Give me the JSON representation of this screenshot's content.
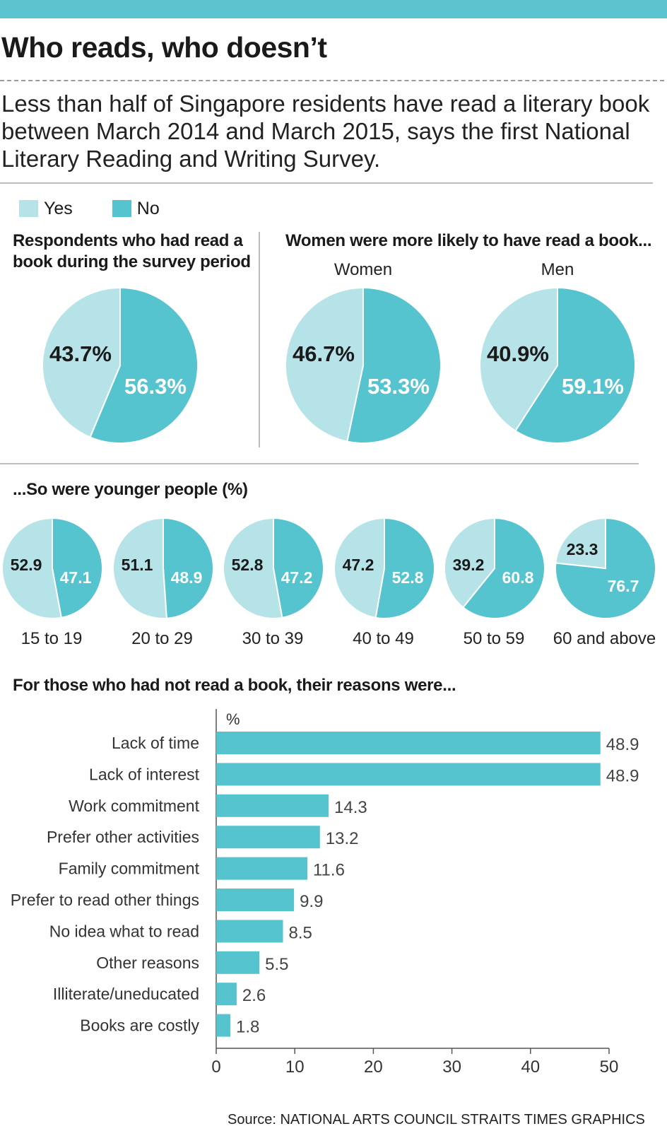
{
  "title": "Who reads, who doesn’t",
  "intro": "Less than half of Singapore residents have read a literary book between March 2014 and March 2015, says the first National Literary Reading and Writing Survey.",
  "legend": [
    {
      "label": "Yes",
      "color": "#b6e3e8"
    },
    {
      "label": "No",
      "color": "#56c4cf"
    }
  ],
  "colors": {
    "yes": "#b6e3e8",
    "no": "#56c4cf",
    "accent": "#5cc4cf"
  },
  "section_overall": {
    "title_lines": [
      "Respondents who had read a",
      "book during the survey period"
    ]
  },
  "section_gender": {
    "title": "Women were more likely to have read a book..."
  },
  "section_age": {
    "title": "...So were younger people (%)"
  },
  "section_reasons": {
    "title": "For those who had not read a book, their reasons were..."
  },
  "source": "Source: NATIONAL ARTS COUNCIL   STRAITS TIMES GRAPHICS",
  "chart_data": [
    {
      "type": "pie",
      "id": "overall",
      "title": "Respondents who had read a book during the survey period",
      "label": "",
      "slices": [
        {
          "name": "Yes",
          "value": 43.7,
          "label": "43.7%"
        },
        {
          "name": "No",
          "value": 56.3,
          "label": "56.3%"
        }
      ]
    },
    {
      "type": "pie",
      "id": "women",
      "title": "Women were more likely to have read a book...",
      "label": "Women",
      "slices": [
        {
          "name": "Yes",
          "value": 46.7,
          "label": "46.7%"
        },
        {
          "name": "No",
          "value": 53.3,
          "label": "53.3%"
        }
      ]
    },
    {
      "type": "pie",
      "id": "men",
      "label": "Men",
      "slices": [
        {
          "name": "Yes",
          "value": 40.9,
          "label": "40.9%"
        },
        {
          "name": "No",
          "value": 59.1,
          "label": "59.1%"
        }
      ]
    },
    {
      "type": "pie",
      "id": "age",
      "title": "...So were younger people (%)",
      "groups": [
        {
          "label": "15 to 19",
          "yes": 52.9,
          "no": 47.1
        },
        {
          "label": "20 to 29",
          "yes": 51.1,
          "no": 48.9
        },
        {
          "label": "30 to 39",
          "yes": 52.8,
          "no": 47.2
        },
        {
          "label": "40 to 49",
          "yes": 47.2,
          "no": 52.8
        },
        {
          "label": "50 to 59",
          "yes": 39.2,
          "no": 60.8
        },
        {
          "label": "60 and above",
          "yes": 23.3,
          "no": 76.7
        }
      ]
    },
    {
      "type": "bar",
      "id": "reasons",
      "orientation": "horizontal",
      "title": "For those who had not read a book, their reasons were...",
      "unit_label": "%",
      "categories": [
        "Lack of time",
        "Lack of interest",
        "Work commitment",
        "Prefer other activities",
        "Family commitment",
        "Prefer to read other things",
        "No idea what to read",
        "Other reasons",
        "Illiterate/uneducated",
        "Books are costly"
      ],
      "values": [
        48.9,
        48.9,
        14.3,
        13.2,
        11.6,
        9.9,
        8.5,
        5.5,
        2.6,
        1.8
      ],
      "xlim": [
        0,
        50
      ],
      "xticks": [
        0,
        10,
        20,
        30,
        40,
        50
      ],
      "grid": false
    }
  ]
}
